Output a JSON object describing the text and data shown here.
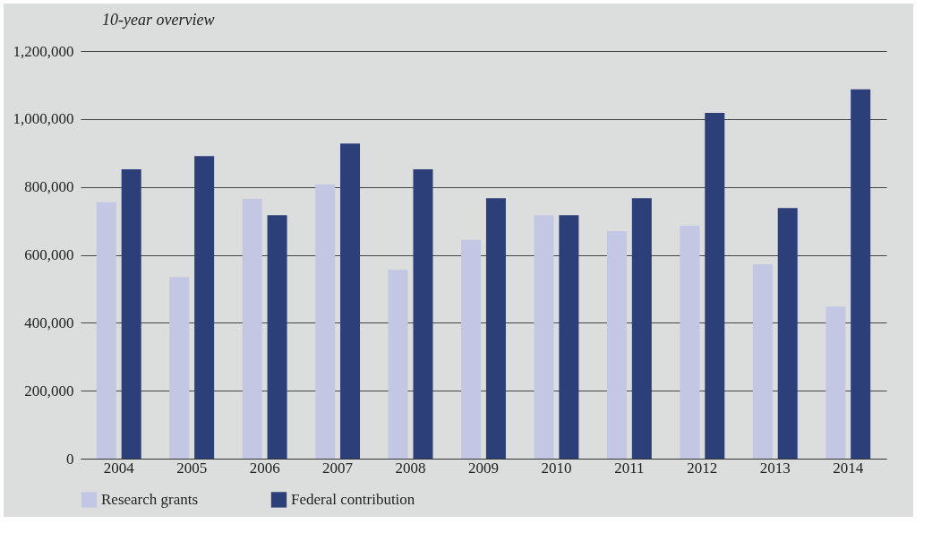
{
  "chart_data": {
    "type": "bar",
    "title": "10-year overview",
    "categories": [
      "2004",
      "2005",
      "2006",
      "2007",
      "2008",
      "2009",
      "2010",
      "2011",
      "2012",
      "2013",
      "2014"
    ],
    "series": [
      {
        "name": "Research grants",
        "color": "#c3c7e4",
        "values": [
          755000,
          535000,
          765000,
          807000,
          556000,
          644000,
          717000,
          670000,
          686000,
          572000,
          448000
        ]
      },
      {
        "name": "Federal contribution",
        "color": "#2c3f78",
        "values": [
          852000,
          891000,
          717000,
          928000,
          852000,
          767000,
          717000,
          767000,
          1018000,
          738000,
          1087000
        ]
      }
    ],
    "ylim": [
      0,
      1200000
    ],
    "yticks": [
      0,
      {
        "value": 200000,
        "label": "200,000"
      },
      {
        "value": 400000,
        "label": "400,000"
      },
      {
        "value": 600000,
        "label": "600,000"
      },
      {
        "value": 800000,
        "label": "800,000"
      },
      {
        "value": 1000000,
        "label": "1,000,000"
      },
      {
        "value": 1200000,
        "label": "1,200,000"
      }
    ],
    "grid": "y",
    "legend": "bottom"
  }
}
